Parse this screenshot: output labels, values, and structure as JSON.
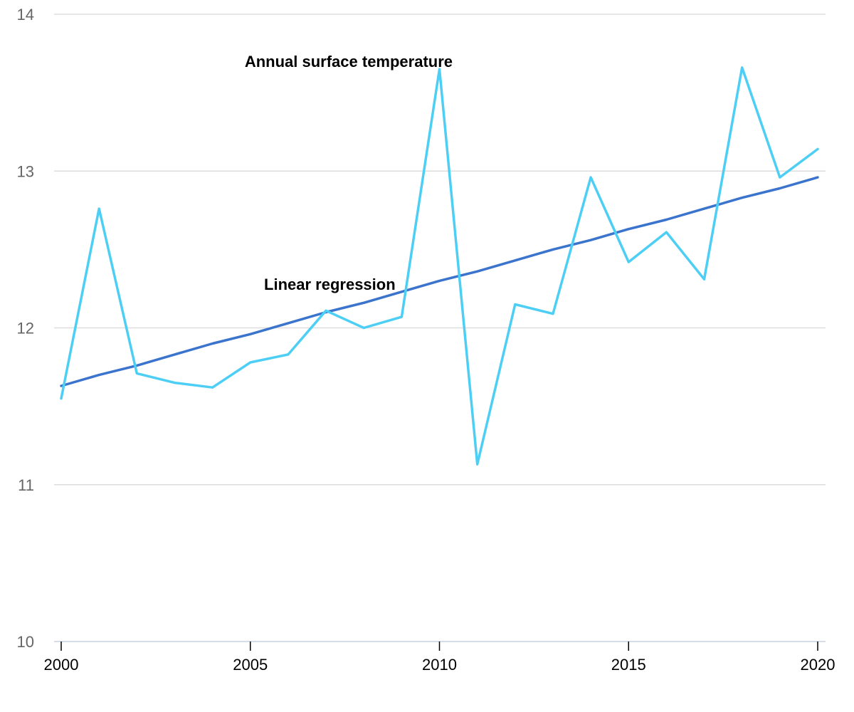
{
  "chart_data": {
    "type": "line",
    "title": "",
    "xlabel": "",
    "ylabel": "",
    "x": [
      2000,
      2001,
      2002,
      2003,
      2004,
      2005,
      2006,
      2007,
      2008,
      2009,
      2010,
      2011,
      2012,
      2013,
      2014,
      2015,
      2016,
      2017,
      2018,
      2019,
      2020
    ],
    "xlim": [
      2000,
      2020
    ],
    "ylim": [
      10,
      14
    ],
    "x_ticks": [
      2000,
      2005,
      2010,
      2015,
      2020
    ],
    "y_ticks": [
      10,
      11,
      12,
      13,
      14
    ],
    "x_tick_labels": [
      "2000",
      "2005",
      "2010",
      "2015",
      "2020"
    ],
    "y_tick_labels": [
      "10",
      "11",
      "12",
      "13",
      "14"
    ],
    "grid": "horizontal",
    "series": [
      {
        "name": "Annual surface temperature",
        "color": "#4dcff5",
        "values": [
          11.55,
          12.76,
          11.71,
          11.65,
          11.62,
          11.78,
          11.83,
          12.11,
          12.0,
          12.07,
          13.65,
          11.13,
          12.15,
          12.09,
          12.96,
          12.42,
          12.61,
          12.31,
          13.66,
          12.96,
          13.14
        ]
      },
      {
        "name": "Linear regression",
        "color": "#3b74cc",
        "values": [
          11.63,
          11.7,
          11.76,
          11.83,
          11.9,
          11.96,
          12.03,
          12.1,
          12.16,
          12.23,
          12.3,
          12.36,
          12.43,
          12.5,
          12.56,
          12.63,
          12.69,
          12.76,
          12.83,
          12.89,
          12.96
        ]
      }
    ],
    "annotations": [
      {
        "text": "Annual surface temperature",
        "x": 2007.6,
        "y": 13.7
      },
      {
        "text": "Linear regression",
        "x": 2007.1,
        "y": 12.28
      }
    ]
  },
  "colors": {
    "grid": "#dddddd",
    "baseline": "#c8d2e0",
    "x_tick": "#000000",
    "y_tick_label": "#666666"
  }
}
